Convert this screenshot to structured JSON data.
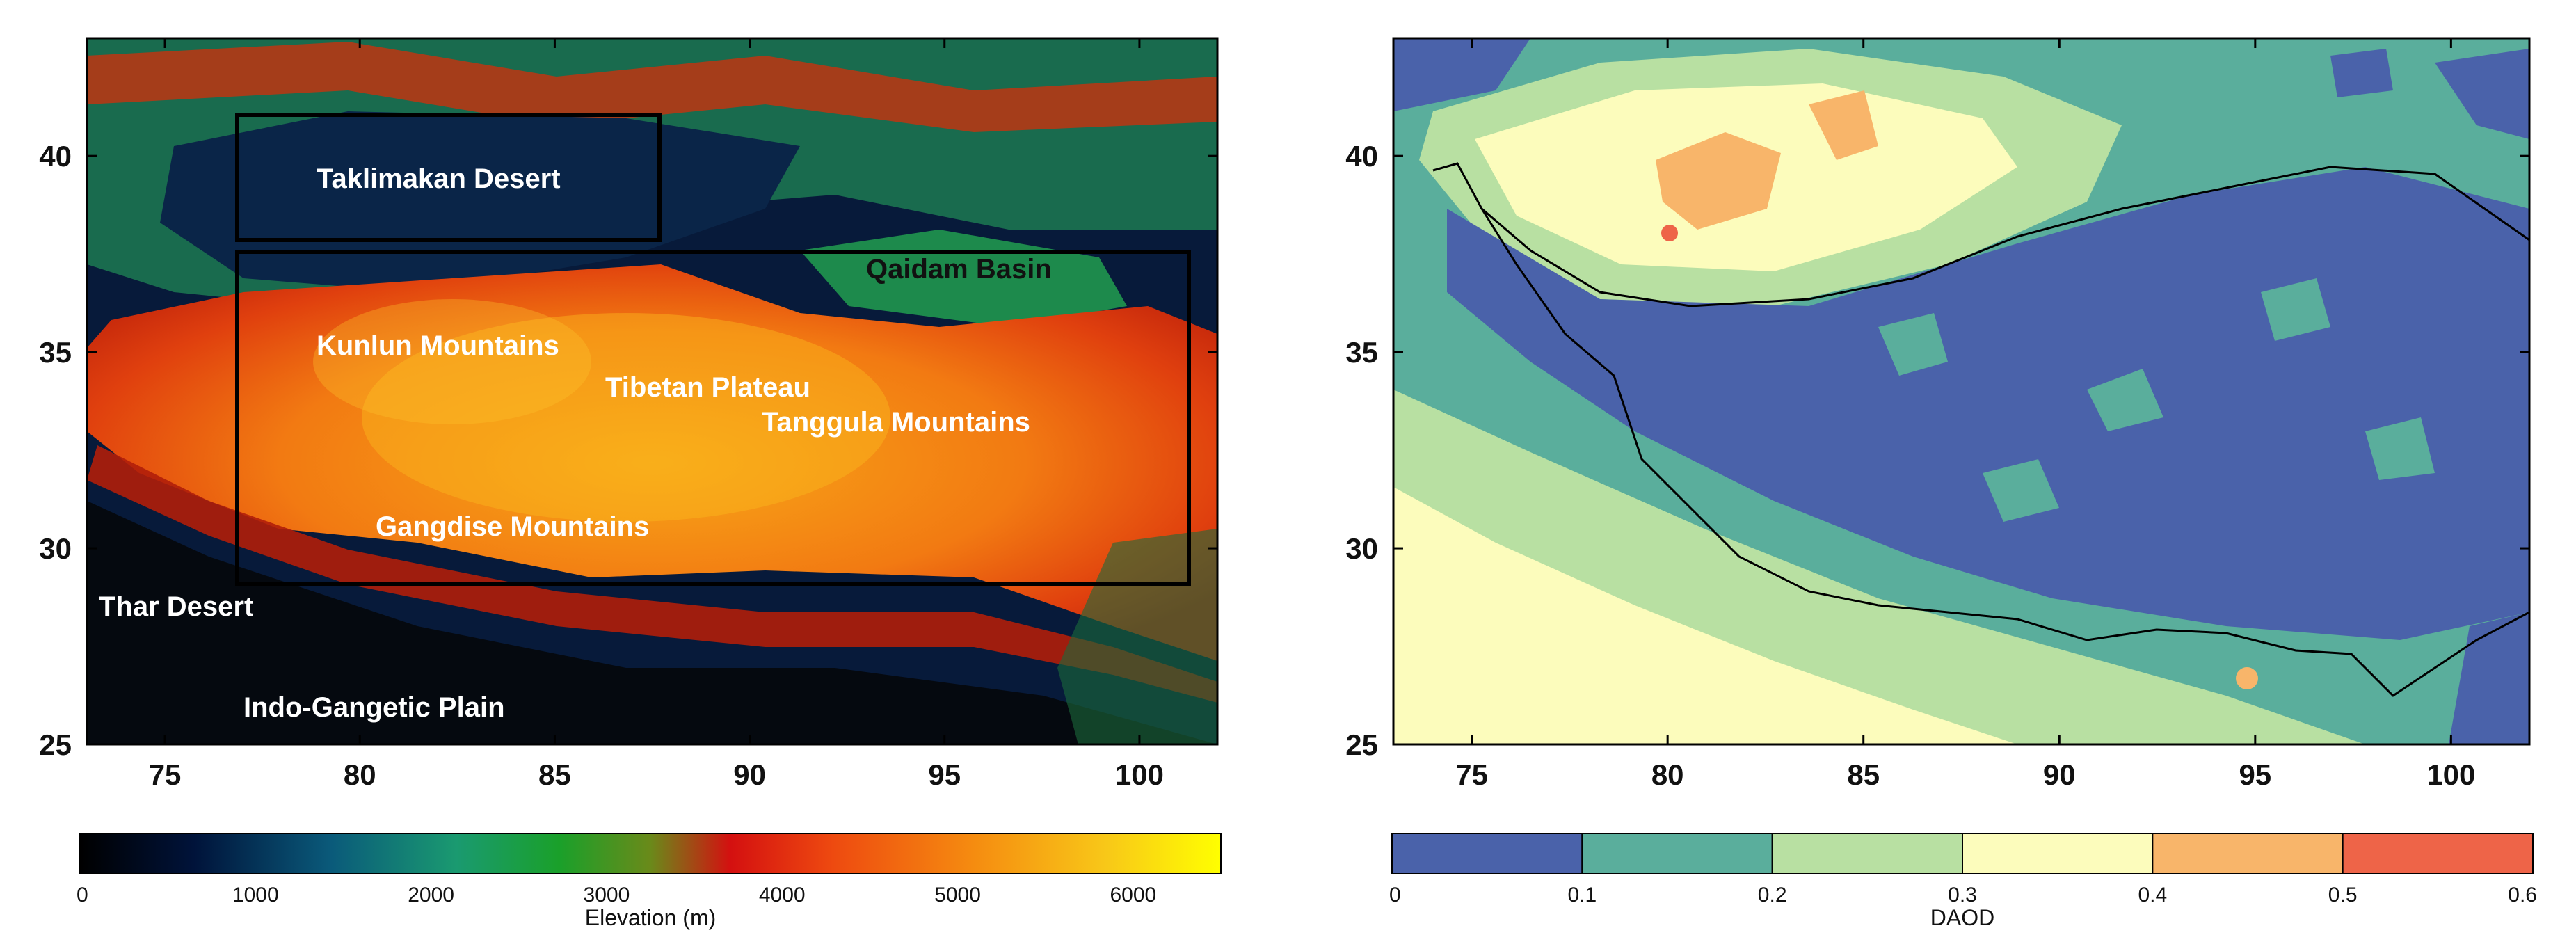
{
  "left_map": {
    "x_ticks": [
      "75",
      "80",
      "85",
      "90",
      "95",
      "100"
    ],
    "y_ticks": [
      "25",
      "30",
      "35",
      "40"
    ],
    "labels": [
      {
        "text": "Taklimakan Desert",
        "color": "#ffffff"
      },
      {
        "text": "Qaidam Basin",
        "color": "#111111"
      },
      {
        "text": "Kunlun Mountains",
        "color": "#ffffff"
      },
      {
        "text": "Tibetan Plateau",
        "color": "#ffffff"
      },
      {
        "text": "Tanggula Mountains",
        "color": "#ffffff"
      },
      {
        "text": "Gangdise Mountains",
        "color": "#ffffff"
      },
      {
        "text": "Thar Desert",
        "color": "#ffffff"
      },
      {
        "text": "Indo-Gangetic Plain",
        "color": "#ffffff"
      }
    ],
    "colorbar": {
      "title": "Elevation (m)",
      "ticks": [
        "0",
        "1000",
        "2000",
        "3000",
        "4000",
        "5000",
        "6000"
      ],
      "tick_values": [
        0,
        1000,
        2000,
        3000,
        4000,
        5000,
        6000
      ],
      "max": 6500,
      "gradient": [
        "#000000",
        "#00133a",
        "#0a5a7a",
        "#1a9a70",
        "#1aa02a",
        "#6a8a1a",
        "#d41010",
        "#ee4a10",
        "#f58a10",
        "#f8c818",
        "#ffff00"
      ]
    }
  },
  "right_map": {
    "x_ticks": [
      "75",
      "80",
      "85",
      "90",
      "95",
      "100"
    ],
    "y_ticks": [
      "25",
      "30",
      "35",
      "40"
    ],
    "colorbar": {
      "title": "DAOD",
      "ticks": [
        "0",
        "0.1",
        "0.2",
        "0.3",
        "0.4",
        "0.5",
        "0.6"
      ],
      "colors": [
        "#4a62aa",
        "#5aae9c",
        "#b8e0a2",
        "#fcfcbc",
        "#f8b56a",
        "#ee6448"
      ]
    }
  },
  "map_extent": {
    "lon": [
      73,
      102
    ],
    "lat": [
      25,
      43
    ]
  }
}
